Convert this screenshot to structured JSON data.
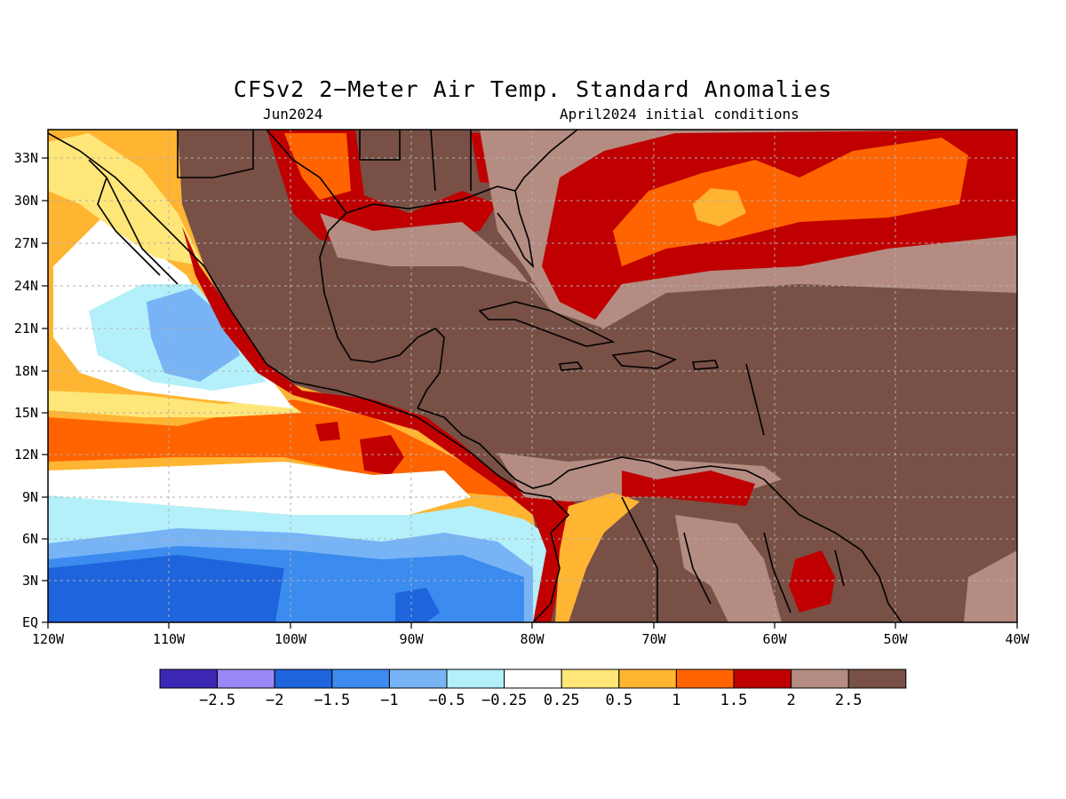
{
  "map": {
    "title": "CFSv2 2−Meter Air Temp. Standard Anomalies",
    "valid_month": "Jun2024",
    "init_conditions": "April2024 initial conditions",
    "lon_ticks": [
      "120W",
      "110W",
      "100W",
      "90W",
      "80W",
      "70W",
      "60W",
      "50W",
      "40W"
    ],
    "lat_ticks": [
      "EQ",
      "3N",
      "6N",
      "9N",
      "12N",
      "15N",
      "18N",
      "21N",
      "24N",
      "27N",
      "30N",
      "33N"
    ],
    "grid": true
  },
  "colorbar": {
    "colors": [
      "#3c28b4",
      "#9b87f5",
      "#1e64dc",
      "#3c8cf0",
      "#78b4f5",
      "#b4f0fa",
      "#ffffff",
      "#ffe678",
      "#ffb432",
      "#ff6400",
      "#c00000",
      "#b48c82",
      "#785046"
    ],
    "labels": [
      "−2.5",
      "−2",
      "−1.5",
      "−1",
      "−0.5",
      "−0.25",
      "0.25",
      "0.5",
      "1",
      "1.5",
      "2",
      "2.5"
    ]
  },
  "palette": {
    "strong_warm": "#785046",
    "warm_2": "#b48c82",
    "warm_1_5": "#c00000",
    "warm_1": "#ff6400",
    "warm_0_5": "#ffb432",
    "warm_0_25": "#ffe678",
    "neutral": "#ffffff",
    "cool_0_25": "#b4f0fa",
    "cool_0_5": "#78b4f5",
    "cool_1": "#3c8cf0",
    "cool_1_5": "#1e64dc"
  }
}
